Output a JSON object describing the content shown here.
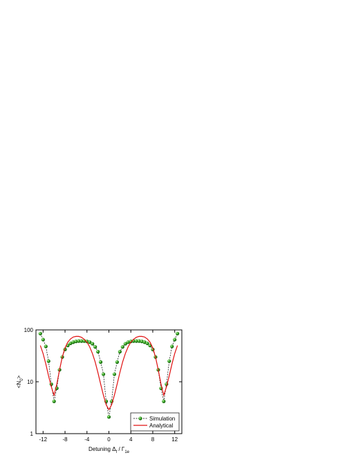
{
  "chart_data": {
    "type": "line",
    "y_label_parts": [
      "<N",
      "0",
      ">"
    ],
    "x_label_parts": [
      "Detuning Δ",
      "f",
      " / Γ",
      "1e"
    ],
    "x": [
      -12.5,
      -12,
      -11.5,
      -11,
      -10.5,
      -10,
      -9.5,
      -9,
      -8.5,
      -8,
      -7.5,
      -7,
      -6.5,
      -6,
      -5.5,
      -5,
      -4.5,
      -4,
      -3.5,
      -3,
      -2.5,
      -2,
      -1.5,
      -1,
      -0.5,
      0,
      0.5,
      1,
      1.5,
      2,
      2.5,
      3,
      3.5,
      4,
      4.5,
      5,
      5.5,
      6,
      6.5,
      7,
      7.5,
      8,
      8.5,
      9,
      9.5,
      10,
      10.5,
      11,
      11.5,
      12,
      12.5
    ],
    "series": [
      {
        "name": "Simulation",
        "color": "#2a9a1a",
        "line_color": "#000000",
        "dashed": true,
        "markers": true,
        "values": [
          85,
          65,
          48,
          25,
          9,
          4.2,
          7.5,
          17,
          30,
          42,
          50,
          55,
          58,
          60,
          61,
          61,
          61,
          60,
          58,
          54,
          47,
          38,
          24,
          14,
          4.2,
          2.1,
          4.2,
          14,
          24,
          38,
          47,
          54,
          58,
          60,
          61,
          61,
          61,
          60,
          58,
          55,
          50,
          42,
          30,
          17,
          7.5,
          4.2,
          9,
          25,
          48,
          65,
          85
        ]
      },
      {
        "name": "Analytical",
        "color": "#e01010",
        "dashed": false,
        "markers": false,
        "values": [
          50,
          35,
          22,
          13,
          8,
          5.5,
          9,
          17,
          30,
          45,
          58,
          67,
          73,
          75,
          75,
          72,
          66,
          58,
          47,
          35,
          24,
          15,
          9,
          5.5,
          3.6,
          2.9,
          3.6,
          5.5,
          9,
          15,
          24,
          35,
          47,
          58,
          66,
          72,
          75,
          75,
          73,
          67,
          58,
          45,
          30,
          17,
          9,
          5.5,
          8,
          13,
          22,
          35,
          50
        ]
      }
    ],
    "xlim": [
      -13.3,
      13.3
    ],
    "xticks": [
      -12,
      -8,
      -4,
      0,
      4,
      8,
      12
    ],
    "ylim": [
      1,
      100
    ],
    "yticks": [
      1,
      10,
      100
    ],
    "log_y": true,
    "legend": "lower right"
  }
}
